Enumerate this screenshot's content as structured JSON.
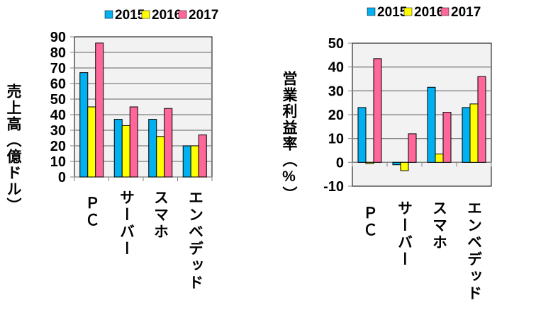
{
  "chart_data": [
    {
      "type": "bar",
      "title": "",
      "ylabel": "売上高（億ドル）",
      "xlabel": "",
      "categories": [
        "ＰＣ",
        "サーバー",
        "スマホ",
        "エンベデッド"
      ],
      "series": [
        {
          "name": "2015",
          "color": "#00B0F0",
          "values": [
            67,
            37,
            37,
            20
          ]
        },
        {
          "name": "2016",
          "color": "#FFFF00",
          "values": [
            45,
            33,
            26,
            20
          ]
        },
        {
          "name": "2017",
          "color": "#FF6699",
          "values": [
            86,
            45,
            44,
            27
          ]
        }
      ],
      "ylim": [
        0,
        90
      ],
      "yticks": [
        0,
        10,
        20,
        30,
        40,
        50,
        60,
        70,
        80,
        90
      ],
      "grid": true,
      "legend": "top"
    },
    {
      "type": "bar",
      "title": "",
      "ylabel": "営業利益率（%）",
      "xlabel": "",
      "categories": [
        "ＰＣ",
        "サーバー",
        "スマホ",
        "エンベデッド"
      ],
      "series": [
        {
          "name": "2015",
          "color": "#00B0F0",
          "values": [
            23,
            -1,
            31.5,
            23
          ]
        },
        {
          "name": "2016",
          "color": "#FFFF00",
          "values": [
            -0.5,
            -3.5,
            3.5,
            24.5
          ]
        },
        {
          "name": "2017",
          "color": "#FF6699",
          "values": [
            43.5,
            12,
            21,
            36
          ]
        }
      ],
      "ylim": [
        -10,
        50
      ],
      "yticks": [
        -10,
        0,
        10,
        20,
        30,
        40,
        50
      ],
      "grid": true,
      "legend": "top"
    }
  ]
}
